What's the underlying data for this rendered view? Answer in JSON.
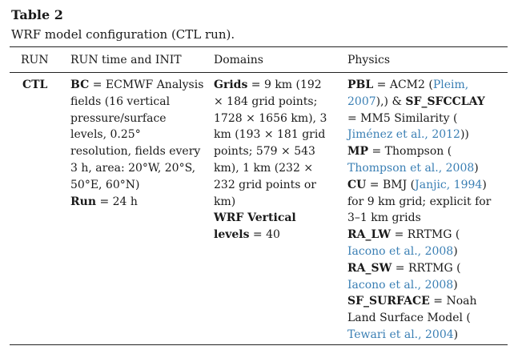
{
  "table": {
    "label": "Table 2",
    "caption": "WRF model configuration (CTL run).",
    "headers": [
      "RUN",
      "RUN time and INIT",
      "Domains",
      "Physics"
    ],
    "run": "CTL",
    "init": {
      "bc_key": "BC",
      "bc_text_1": " = ECMWF Analysis",
      "bc_text_2": "fields (16 vertical",
      "bc_text_3": "pressure/surface",
      "bc_text_4": "levels, 0.25°",
      "bc_text_5": "resolution, fields every",
      "bc_text_6": "3 h, area: 20°W, 20°S,",
      "bc_text_7": "50°E, 60°N)",
      "run_key": "Run",
      "run_text": " = 24 h"
    },
    "domains": {
      "grids_key": "Grids",
      "grids_1": " = 9 km (192",
      "grids_2": "× 184 grid points;",
      "grids_3": "1728 × 1656 km), 3",
      "grids_4": "km (193 × 181 grid",
      "grids_5": "points; 579 × 543",
      "grids_6": "km), 1 km (232 ×",
      "grids_7": "232 grid points or",
      "grids_8": "km)",
      "vert_key_1": "WRF Vertical",
      "vert_key_2": "levels",
      "vert_text": " = 40"
    },
    "physics": {
      "pbl_key": "PBL",
      "pbl_text": " = ACM2 (",
      "pbl_ref_1": "Pleim,",
      "pbl_ref_2": "2007",
      "pbl_after": "),) & ",
      "sfcl_key": "SF_SFCCLAY",
      "sfcl_text": "= MM5 Similarity (",
      "sfcl_ref": "Jiménez et al., 2012",
      "sfcl_after": "))",
      "mp_key": "MP",
      "mp_text": " = Thompson (",
      "mp_ref": "Thompson et al., 2008",
      "mp_after": ")",
      "cu_key": "CU",
      "cu_text": " = BMJ (",
      "cu_ref": "Janjic, 1994",
      "cu_after": ")",
      "cu_text_2": "for 9 km grid; explicit for",
      "cu_text_3": "3–1 km grids",
      "ralw_key": "RA_LW",
      "ralw_text": " = RRTMG (",
      "ralw_ref": "Iacono et al., 2008",
      "ralw_after": ")",
      "rasw_key": "RA_SW",
      "rasw_text": " = RRTMG (",
      "rasw_ref": "Iacono et al., 2008",
      "rasw_after": ")",
      "sfs_key": "SF_SURFACE",
      "sfs_text": " = Noah",
      "sfs_text_2": "Land Surface Model (",
      "sfs_ref": "Tewari et al., 2004",
      "sfs_after": ")"
    },
    "colors": {
      "text": "#1a1a1a",
      "link": "#3a7fb4",
      "rule": "#222222"
    }
  }
}
